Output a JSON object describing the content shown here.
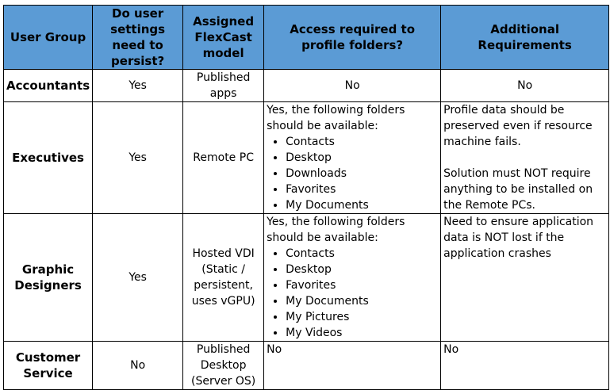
{
  "headers": [
    "User Group",
    "Do user settings need to persist?",
    "Assigned FlexCast model",
    "Access required to profile folders?",
    "Additional Requirements"
  ],
  "rows": [
    {
      "group": "Accountants",
      "persist": "Yes",
      "model": "Published apps",
      "access": "No",
      "additional": "No"
    },
    {
      "group": "Executives",
      "persist": "Yes",
      "model": "Remote PC",
      "access_intro": "Yes, the following folders should be available:",
      "folders": [
        "Contacts",
        "Desktop",
        "Downloads",
        "Favorites",
        "My Documents"
      ],
      "additional_1": "Profile data should be preserved even if resource machine fails.",
      "additional_2": "Solution must NOT require anything to be installed on the Remote PCs."
    },
    {
      "group": "Graphic Designers",
      "persist": "Yes",
      "model": "Hosted VDI (Static / persistent, uses vGPU)",
      "access_intro": "Yes, the following folders should be available:",
      "folders": [
        "Contacts",
        "Desktop",
        "Favorites",
        "My Documents",
        "My Pictures",
        "My Videos"
      ],
      "additional": "Need to ensure application data is NOT lost if the application crashes"
    },
    {
      "group": "Customer Service",
      "persist": "No",
      "model": "Published Desktop (Server OS)",
      "access": "No",
      "additional": "No"
    }
  ]
}
